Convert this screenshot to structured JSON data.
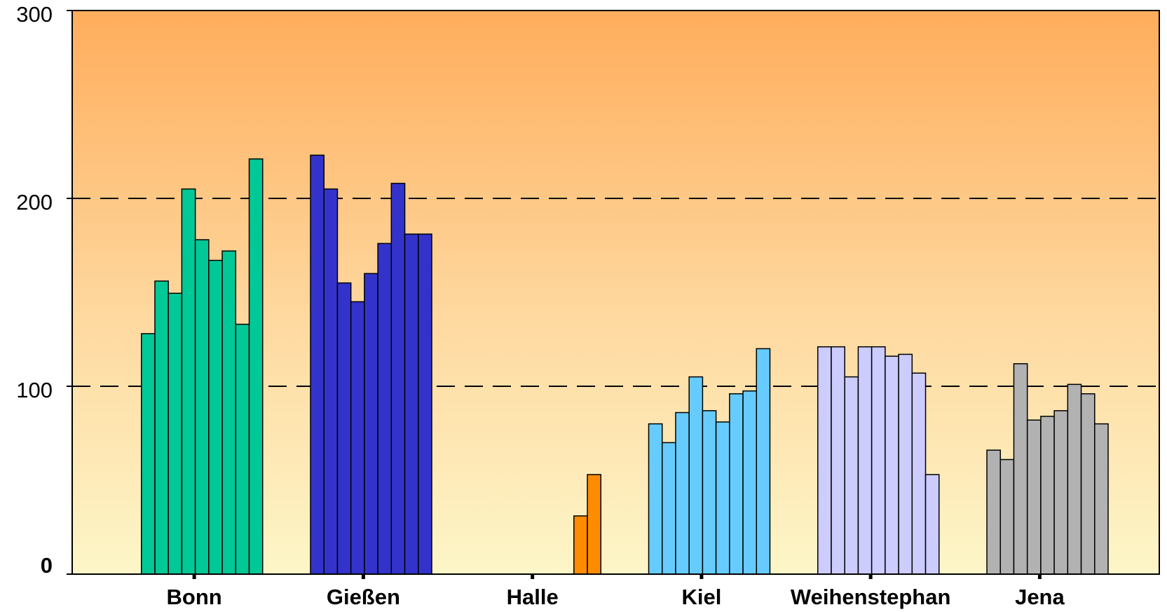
{
  "chart_data": {
    "type": "grouped-bar",
    "categories": [
      "Bonn",
      "Gießen",
      "Halle",
      "Kiel",
      "Weihenstephan",
      "Jena"
    ],
    "colors": [
      "#00c896",
      "#3333cc",
      "#ff8c00",
      "#66ccff",
      "#ccccff",
      "#b2b2b2"
    ],
    "values": [
      [
        128,
        156,
        149.5,
        205,
        178,
        167,
        172,
        133,
        221
      ],
      [
        223,
        205,
        155,
        145,
        160,
        176,
        208,
        181,
        181
      ],
      [
        null,
        null,
        null,
        null,
        null,
        null,
        null,
        31,
        53
      ],
      [
        80,
        70,
        86,
        105,
        87,
        81,
        96,
        97.5,
        120
      ],
      [
        121,
        121,
        105,
        121,
        121,
        116,
        117,
        107,
        53
      ],
      [
        66,
        61,
        112,
        82,
        84,
        87,
        101,
        96,
        80
      ]
    ],
    "ylim": [
      0,
      300
    ],
    "yticks": [
      0,
      100,
      200,
      300
    ],
    "grid": true
  }
}
